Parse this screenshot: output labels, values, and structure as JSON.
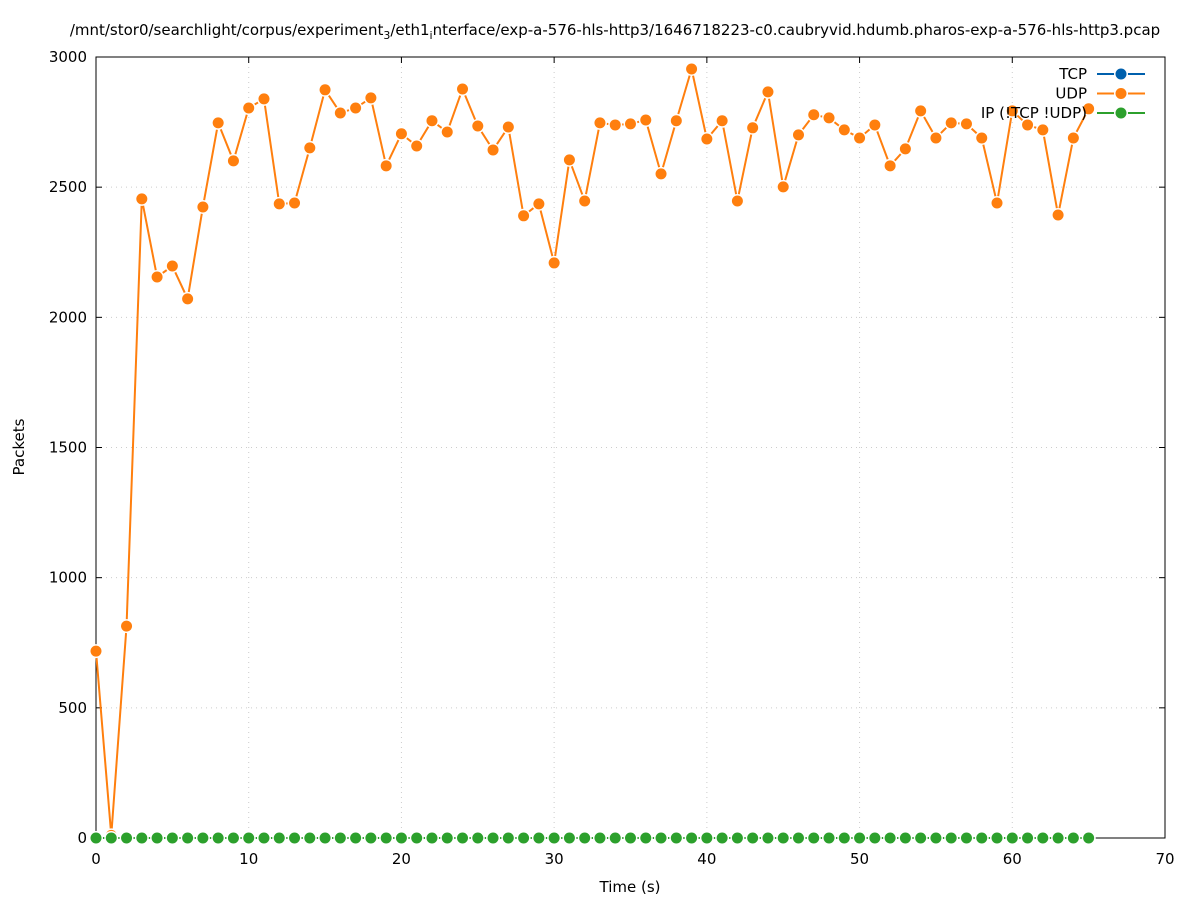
{
  "chart_data": {
    "type": "line",
    "title_parts": [
      {
        "text": "/mnt/stor0/searchlight/corpus/experiment",
        "sub": false
      },
      {
        "text": "3",
        "sub": true
      },
      {
        "text": "/eth1",
        "sub": false
      },
      {
        "text": "i",
        "sub": true
      },
      {
        "text": "nterface/exp-a-576-hls-http3/1646718223-c0.caubryvid.hdumb.pharos-exp-a-576-hls-http3.pcap",
        "sub": false
      }
    ],
    "xlabel": "Time (s)",
    "ylabel": "Packets",
    "xlim": [
      0,
      70
    ],
    "ylim": [
      0,
      3000
    ],
    "xticks": [
      0,
      10,
      20,
      30,
      40,
      50,
      60,
      70
    ],
    "yticks": [
      0,
      500,
      1000,
      1500,
      2000,
      2500,
      3000
    ],
    "grid": true,
    "legend_position": "top-right",
    "x": [
      0,
      1,
      2,
      3,
      4,
      5,
      6,
      7,
      8,
      9,
      10,
      11,
      12,
      13,
      14,
      15,
      16,
      17,
      18,
      19,
      20,
      21,
      22,
      23,
      24,
      25,
      26,
      27,
      28,
      29,
      30,
      31,
      32,
      33,
      34,
      35,
      36,
      37,
      38,
      39,
      40,
      41,
      42,
      43,
      44,
      45,
      46,
      47,
      48,
      49,
      50,
      51,
      52,
      53,
      54,
      55,
      56,
      57,
      58,
      59,
      60,
      61,
      62,
      63,
      64,
      65
    ],
    "series": [
      {
        "name": "TCP",
        "color": "#0060ad",
        "values": [
          0,
          0,
          0,
          0,
          0,
          0,
          0,
          0,
          0,
          0,
          0,
          0,
          0,
          0,
          0,
          0,
          0,
          0,
          0,
          0,
          0,
          0,
          0,
          0,
          0,
          0,
          0,
          0,
          0,
          0,
          0,
          0,
          0,
          0,
          0,
          0,
          0,
          0,
          0,
          0,
          0,
          0,
          0,
          0,
          0,
          0,
          0,
          0,
          0,
          0,
          0,
          0,
          0,
          0,
          0,
          0,
          0,
          0,
          0,
          0,
          0,
          0,
          0,
          0,
          0,
          0
        ]
      },
      {
        "name": "UDP",
        "color": "#ff7f0e",
        "values": [
          718,
          10,
          814,
          2455,
          2155,
          2197,
          2071,
          2424,
          2747,
          2601,
          2804,
          2839,
          2436,
          2439,
          2651,
          2874,
          2785,
          2804,
          2843,
          2582,
          2705,
          2658,
          2755,
          2712,
          2877,
          2735,
          2643,
          2731,
          2390,
          2436,
          2209,
          2605,
          2447,
          2747,
          2739,
          2743,
          2758,
          2551,
          2755,
          2954,
          2685,
          2755,
          2447,
          2728,
          2866,
          2501,
          2701,
          2778,
          2766,
          2720,
          2689,
          2739,
          2582,
          2647,
          2793,
          2689,
          2747,
          2743,
          2689,
          2439,
          2793,
          2739,
          2720,
          2393,
          2689,
          2801
        ]
      },
      {
        "name": "IP (!TCP  !UDP)",
        "color": "#2ca02c",
        "values": [
          0,
          0,
          0,
          0,
          0,
          0,
          0,
          0,
          0,
          0,
          0,
          0,
          0,
          0,
          0,
          0,
          0,
          0,
          0,
          0,
          0,
          0,
          0,
          0,
          0,
          0,
          0,
          0,
          0,
          0,
          0,
          0,
          0,
          0,
          0,
          0,
          0,
          0,
          0,
          0,
          0,
          0,
          0,
          0,
          0,
          0,
          0,
          0,
          0,
          0,
          0,
          0,
          0,
          0,
          0,
          0,
          0,
          0,
          0,
          0,
          0,
          0,
          0,
          0,
          0,
          0
        ]
      }
    ]
  }
}
